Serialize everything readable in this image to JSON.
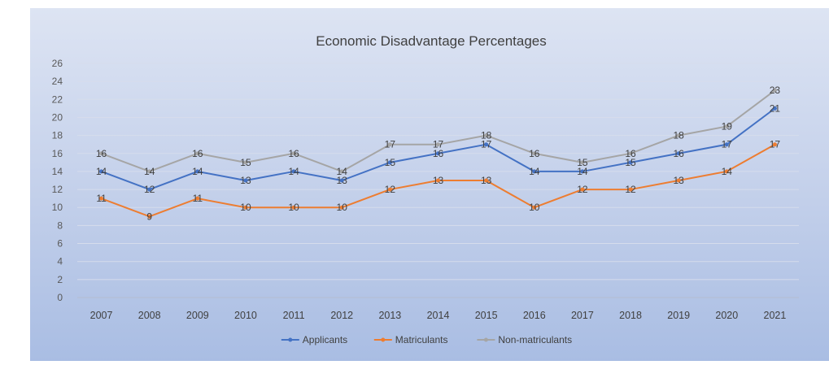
{
  "chart_data": {
    "type": "line",
    "title": "Economic Disadvantage Percentages",
    "xlabel": "",
    "ylabel": "",
    "ylim": [
      0,
      26
    ],
    "yticks": [
      0,
      2,
      4,
      6,
      8,
      10,
      12,
      14,
      16,
      18,
      20,
      22,
      24,
      26
    ],
    "categories": [
      "2007",
      "2008",
      "2009",
      "2010",
      "2011",
      "2012",
      "2013",
      "2014",
      "2015",
      "2016",
      "2017",
      "2018",
      "2019",
      "2020",
      "2021"
    ],
    "grid": true,
    "legend_position": "bottom",
    "series": [
      {
        "name": "Applicants",
        "color": "#4472c4",
        "values": [
          14,
          12,
          14,
          13,
          14,
          13,
          15,
          16,
          17,
          14,
          14,
          15,
          16,
          17,
          21
        ]
      },
      {
        "name": "Matriculants",
        "color": "#ed7d31",
        "values": [
          11,
          9,
          11,
          10,
          10,
          10,
          12,
          13,
          13,
          10,
          12,
          12,
          13,
          14,
          17
        ]
      },
      {
        "name": "Non-matriculants",
        "color": "#a5a5a5",
        "values": [
          16,
          14,
          16,
          15,
          16,
          14,
          17,
          17,
          18,
          16,
          15,
          16,
          18,
          19,
          23
        ]
      }
    ]
  }
}
